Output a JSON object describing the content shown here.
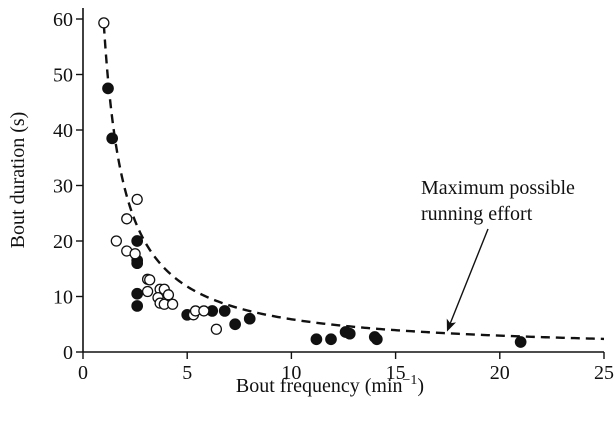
{
  "chart_data": {
    "type": "scatter",
    "xlabel": "Bout frequency (min",
    "xlabel_sup": "−1",
    "xlabel_tail": ")",
    "ylabel": "Bout duration (s)",
    "xlim": [
      0,
      25
    ],
    "ylim": [
      0,
      62
    ],
    "xticks": [
      0,
      5,
      10,
      15,
      20,
      25
    ],
    "yticks": [
      0,
      10,
      20,
      30,
      40,
      50,
      60
    ],
    "grid": false,
    "series": [
      {
        "marker": "filled-circle",
        "color": "#111111",
        "points": [
          [
            1.2,
            47.5
          ],
          [
            1.4,
            38.5
          ],
          [
            2.6,
            20
          ],
          [
            2.6,
            16.5
          ],
          [
            2.6,
            16
          ],
          [
            2.6,
            10.5
          ],
          [
            2.6,
            8.3
          ],
          [
            5.0,
            6.7
          ],
          [
            6.2,
            7.4
          ],
          [
            6.8,
            7.4
          ],
          [
            7.3,
            5
          ],
          [
            8.0,
            6
          ],
          [
            11.2,
            2.3
          ],
          [
            11.9,
            2.3
          ],
          [
            12.6,
            3.6
          ],
          [
            12.8,
            3.3
          ],
          [
            14.0,
            2.7
          ],
          [
            14.1,
            2.3
          ],
          [
            21.0,
            1.8
          ]
        ]
      },
      {
        "marker": "open-circle",
        "color": "#111111",
        "points": [
          [
            1.0,
            59.3
          ],
          [
            2.6,
            27.5
          ],
          [
            2.1,
            24
          ],
          [
            1.6,
            20
          ],
          [
            2.1,
            18.2
          ],
          [
            2.5,
            17.7
          ],
          [
            3.1,
            13.1
          ],
          [
            3.2,
            13
          ],
          [
            3.1,
            10.9
          ],
          [
            3.7,
            11.3
          ],
          [
            3.9,
            11.3
          ],
          [
            3.6,
            9.8
          ],
          [
            4.1,
            10.3
          ],
          [
            3.7,
            8.8
          ],
          [
            3.9,
            8.6
          ],
          [
            4.3,
            8.6
          ],
          [
            5.3,
            6.7
          ],
          [
            5.4,
            7.4
          ],
          [
            5.8,
            7.4
          ],
          [
            6.4,
            4.1
          ]
        ]
      }
    ],
    "curve": {
      "style": "dashed",
      "formula": "y = 59 / x",
      "x_range": [
        1.0,
        25
      ]
    },
    "annotation": {
      "lines": [
        "Maximum possible",
        "running effort"
      ],
      "arrow_target": [
        17.5,
        3.4
      ]
    }
  }
}
